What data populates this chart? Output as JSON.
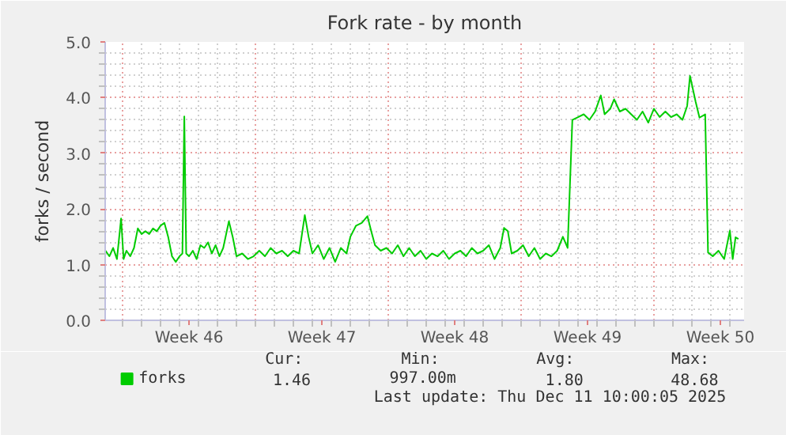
{
  "chart_data": {
    "type": "line",
    "title": "Fork rate - by month",
    "ylabel": "forks / second",
    "xlim": [
      "2025-11-08T01:55",
      "2025-12-11T18:00"
    ],
    "ylim": [
      0,
      5
    ],
    "xticks": [
      {
        "value": "2025-11-09",
        "label": null
      },
      {
        "value": "2025-11-12T12:00",
        "label": "Week 46"
      },
      {
        "value": "2025-11-16",
        "label": null
      },
      {
        "value": "2025-11-19T12:00",
        "label": "Week 47"
      },
      {
        "value": "2025-11-23",
        "label": null
      },
      {
        "value": "2025-11-26T12:00",
        "label": "Week 48"
      },
      {
        "value": "2025-11-30",
        "label": null
      },
      {
        "value": "2025-12-03T12:00",
        "label": "Week 49"
      },
      {
        "value": "2025-12-07",
        "label": null
      },
      {
        "value": "2025-12-10T12:00",
        "label": "Week 50"
      }
    ],
    "yticks": [
      {
        "value": 0,
        "label": "0.0"
      },
      {
        "value": 1,
        "label": "1.0"
      },
      {
        "value": 2,
        "label": "2.0"
      },
      {
        "value": 3,
        "label": "3.0"
      },
      {
        "value": 4,
        "label": "4.0"
      },
      {
        "value": 5,
        "label": "5.0"
      }
    ],
    "grid": true,
    "legend": "bottom",
    "x": [
      "2025-11-08T02:24",
      "2025-11-08T07:12",
      "2025-11-08T12:00",
      "2025-11-08T16:48",
      "2025-11-08T22:05",
      "2025-11-09T01:12",
      "2025-11-09T04:48",
      "2025-11-09T09:36",
      "2025-11-09T14:24",
      "2025-11-09T19:12",
      "2025-11-10T00:00",
      "2025-11-10T04:48",
      "2025-11-10T09:36",
      "2025-11-10T14:24",
      "2025-11-10T19:12",
      "2025-11-11T00:00",
      "2025-11-11T04:48",
      "2025-11-11T09:36",
      "2025-11-11T14:24",
      "2025-11-11T19:12",
      "2025-11-12T00:00",
      "2025-11-12T03:36",
      "2025-11-12T06:00",
      "2025-11-12T08:24",
      "2025-11-12T12:00",
      "2025-11-12T16:48",
      "2025-11-12T21:36",
      "2025-11-13T02:24",
      "2025-11-13T07:12",
      "2025-11-13T12:00",
      "2025-11-13T16:48",
      "2025-11-13T21:36",
      "2025-11-14T02:24",
      "2025-11-14T07:12",
      "2025-11-14T14:24",
      "2025-11-14T19:12",
      "2025-11-15T00:00",
      "2025-11-15T07:12",
      "2025-11-15T14:24",
      "2025-11-15T21:36",
      "2025-11-16T04:48",
      "2025-11-16T12:00",
      "2025-11-16T19:12",
      "2025-11-17T02:24",
      "2025-11-17T09:36",
      "2025-11-17T16:48",
      "2025-11-18T00:00",
      "2025-11-18T07:12",
      "2025-11-18T14:24",
      "2025-11-18T19:12",
      "2025-11-19T00:00",
      "2025-11-19T07:12",
      "2025-11-19T14:24",
      "2025-11-19T21:36",
      "2025-11-20T04:48",
      "2025-11-20T12:00",
      "2025-11-20T19:12",
      "2025-11-21T00:00",
      "2025-11-21T07:12",
      "2025-11-21T14:24",
      "2025-11-21T21:36",
      "2025-11-22T02:24",
      "2025-11-22T07:12",
      "2025-11-22T14:24",
      "2025-11-22T21:36",
      "2025-11-23T04:48",
      "2025-11-23T12:00",
      "2025-11-23T19:12",
      "2025-11-24T02:24",
      "2025-11-24T09:36",
      "2025-11-24T16:48",
      "2025-11-25T00:00",
      "2025-11-25T07:12",
      "2025-11-25T14:24",
      "2025-11-25T21:36",
      "2025-11-26T04:48",
      "2025-11-26T12:00",
      "2025-11-26T19:12",
      "2025-11-27T02:24",
      "2025-11-27T09:36",
      "2025-11-27T16:48",
      "2025-11-28T00:00",
      "2025-11-28T07:12",
      "2025-11-28T14:24",
      "2025-11-28T21:36",
      "2025-11-29T02:24",
      "2025-11-29T07:12",
      "2025-11-29T12:00",
      "2025-11-29T19:12",
      "2025-11-30T02:24",
      "2025-11-30T09:36",
      "2025-11-30T16:48",
      "2025-12-01T00:00",
      "2025-12-01T07:12",
      "2025-12-01T14:24",
      "2025-12-01T21:36",
      "2025-12-02T04:48",
      "2025-12-02T10:48",
      "2025-12-02T16:48",
      "2025-12-03T00:00",
      "2025-12-03T07:12",
      "2025-12-03T14:24",
      "2025-12-03T21:36",
      "2025-12-04T04:48",
      "2025-12-04T09:36",
      "2025-12-04T16:48",
      "2025-12-04T21:36",
      "2025-12-05T04:48",
      "2025-12-05T12:00",
      "2025-12-05T19:12",
      "2025-12-06T02:24",
      "2025-12-06T09:36",
      "2025-12-06T16:48",
      "2025-12-07T00:00",
      "2025-12-07T07:12",
      "2025-12-07T14:24",
      "2025-12-07T21:36",
      "2025-12-08T04:48",
      "2025-12-08T12:00",
      "2025-12-08T18:00",
      "2025-12-08T21:36",
      "2025-12-09T04:48",
      "2025-12-09T09:36",
      "2025-12-09T16:48",
      "2025-12-09T20:24",
      "2025-12-10T02:24",
      "2025-12-10T09:36",
      "2025-12-10T16:48",
      "2025-12-11T00:00",
      "2025-12-11T03:36",
      "2025-12-11T07:12",
      "2025-12-11T10:48"
    ],
    "series": [
      {
        "name": "forks",
        "color": "#00cc00",
        "values": [
          1.25,
          1.15,
          1.3,
          1.1,
          1.83,
          1.1,
          1.25,
          1.15,
          1.3,
          1.65,
          1.55,
          1.6,
          1.55,
          1.65,
          1.6,
          1.7,
          1.75,
          1.5,
          1.15,
          1.05,
          1.15,
          1.2,
          3.66,
          1.2,
          1.15,
          1.25,
          1.1,
          1.35,
          1.3,
          1.4,
          1.2,
          1.35,
          1.15,
          1.3,
          1.78,
          1.5,
          1.15,
          1.2,
          1.1,
          1.15,
          1.25,
          1.15,
          1.3,
          1.2,
          1.25,
          1.15,
          1.25,
          1.2,
          1.89,
          1.5,
          1.2,
          1.35,
          1.1,
          1.3,
          1.05,
          1.3,
          1.2,
          1.5,
          1.7,
          1.75,
          1.87,
          1.6,
          1.35,
          1.25,
          1.3,
          1.2,
          1.35,
          1.15,
          1.3,
          1.15,
          1.25,
          1.1,
          1.2,
          1.15,
          1.25,
          1.1,
          1.2,
          1.25,
          1.15,
          1.3,
          1.2,
          1.25,
          1.35,
          1.1,
          1.3,
          1.66,
          1.6,
          1.2,
          1.25,
          1.35,
          1.15,
          1.3,
          1.1,
          1.2,
          1.15,
          1.25,
          1.5,
          1.3,
          3.6,
          3.65,
          3.7,
          3.6,
          3.75,
          4.04,
          3.7,
          3.8,
          3.97,
          3.75,
          3.8,
          3.7,
          3.6,
          3.75,
          3.55,
          3.8,
          3.65,
          3.75,
          3.65,
          3.7,
          3.6,
          3.85,
          4.39,
          3.92,
          3.64,
          3.7,
          1.22,
          1.15,
          1.25,
          1.1,
          1.61,
          1.1,
          1.49,
          1.46
        ]
      }
    ],
    "annotations": [
      "Cur:",
      "Min:",
      "Avg:",
      "Max:",
      "1.46",
      "997.00m",
      "1.80",
      "48.68",
      "Last update: Thu Dec 11 10:00:05 2025"
    ]
  }
}
